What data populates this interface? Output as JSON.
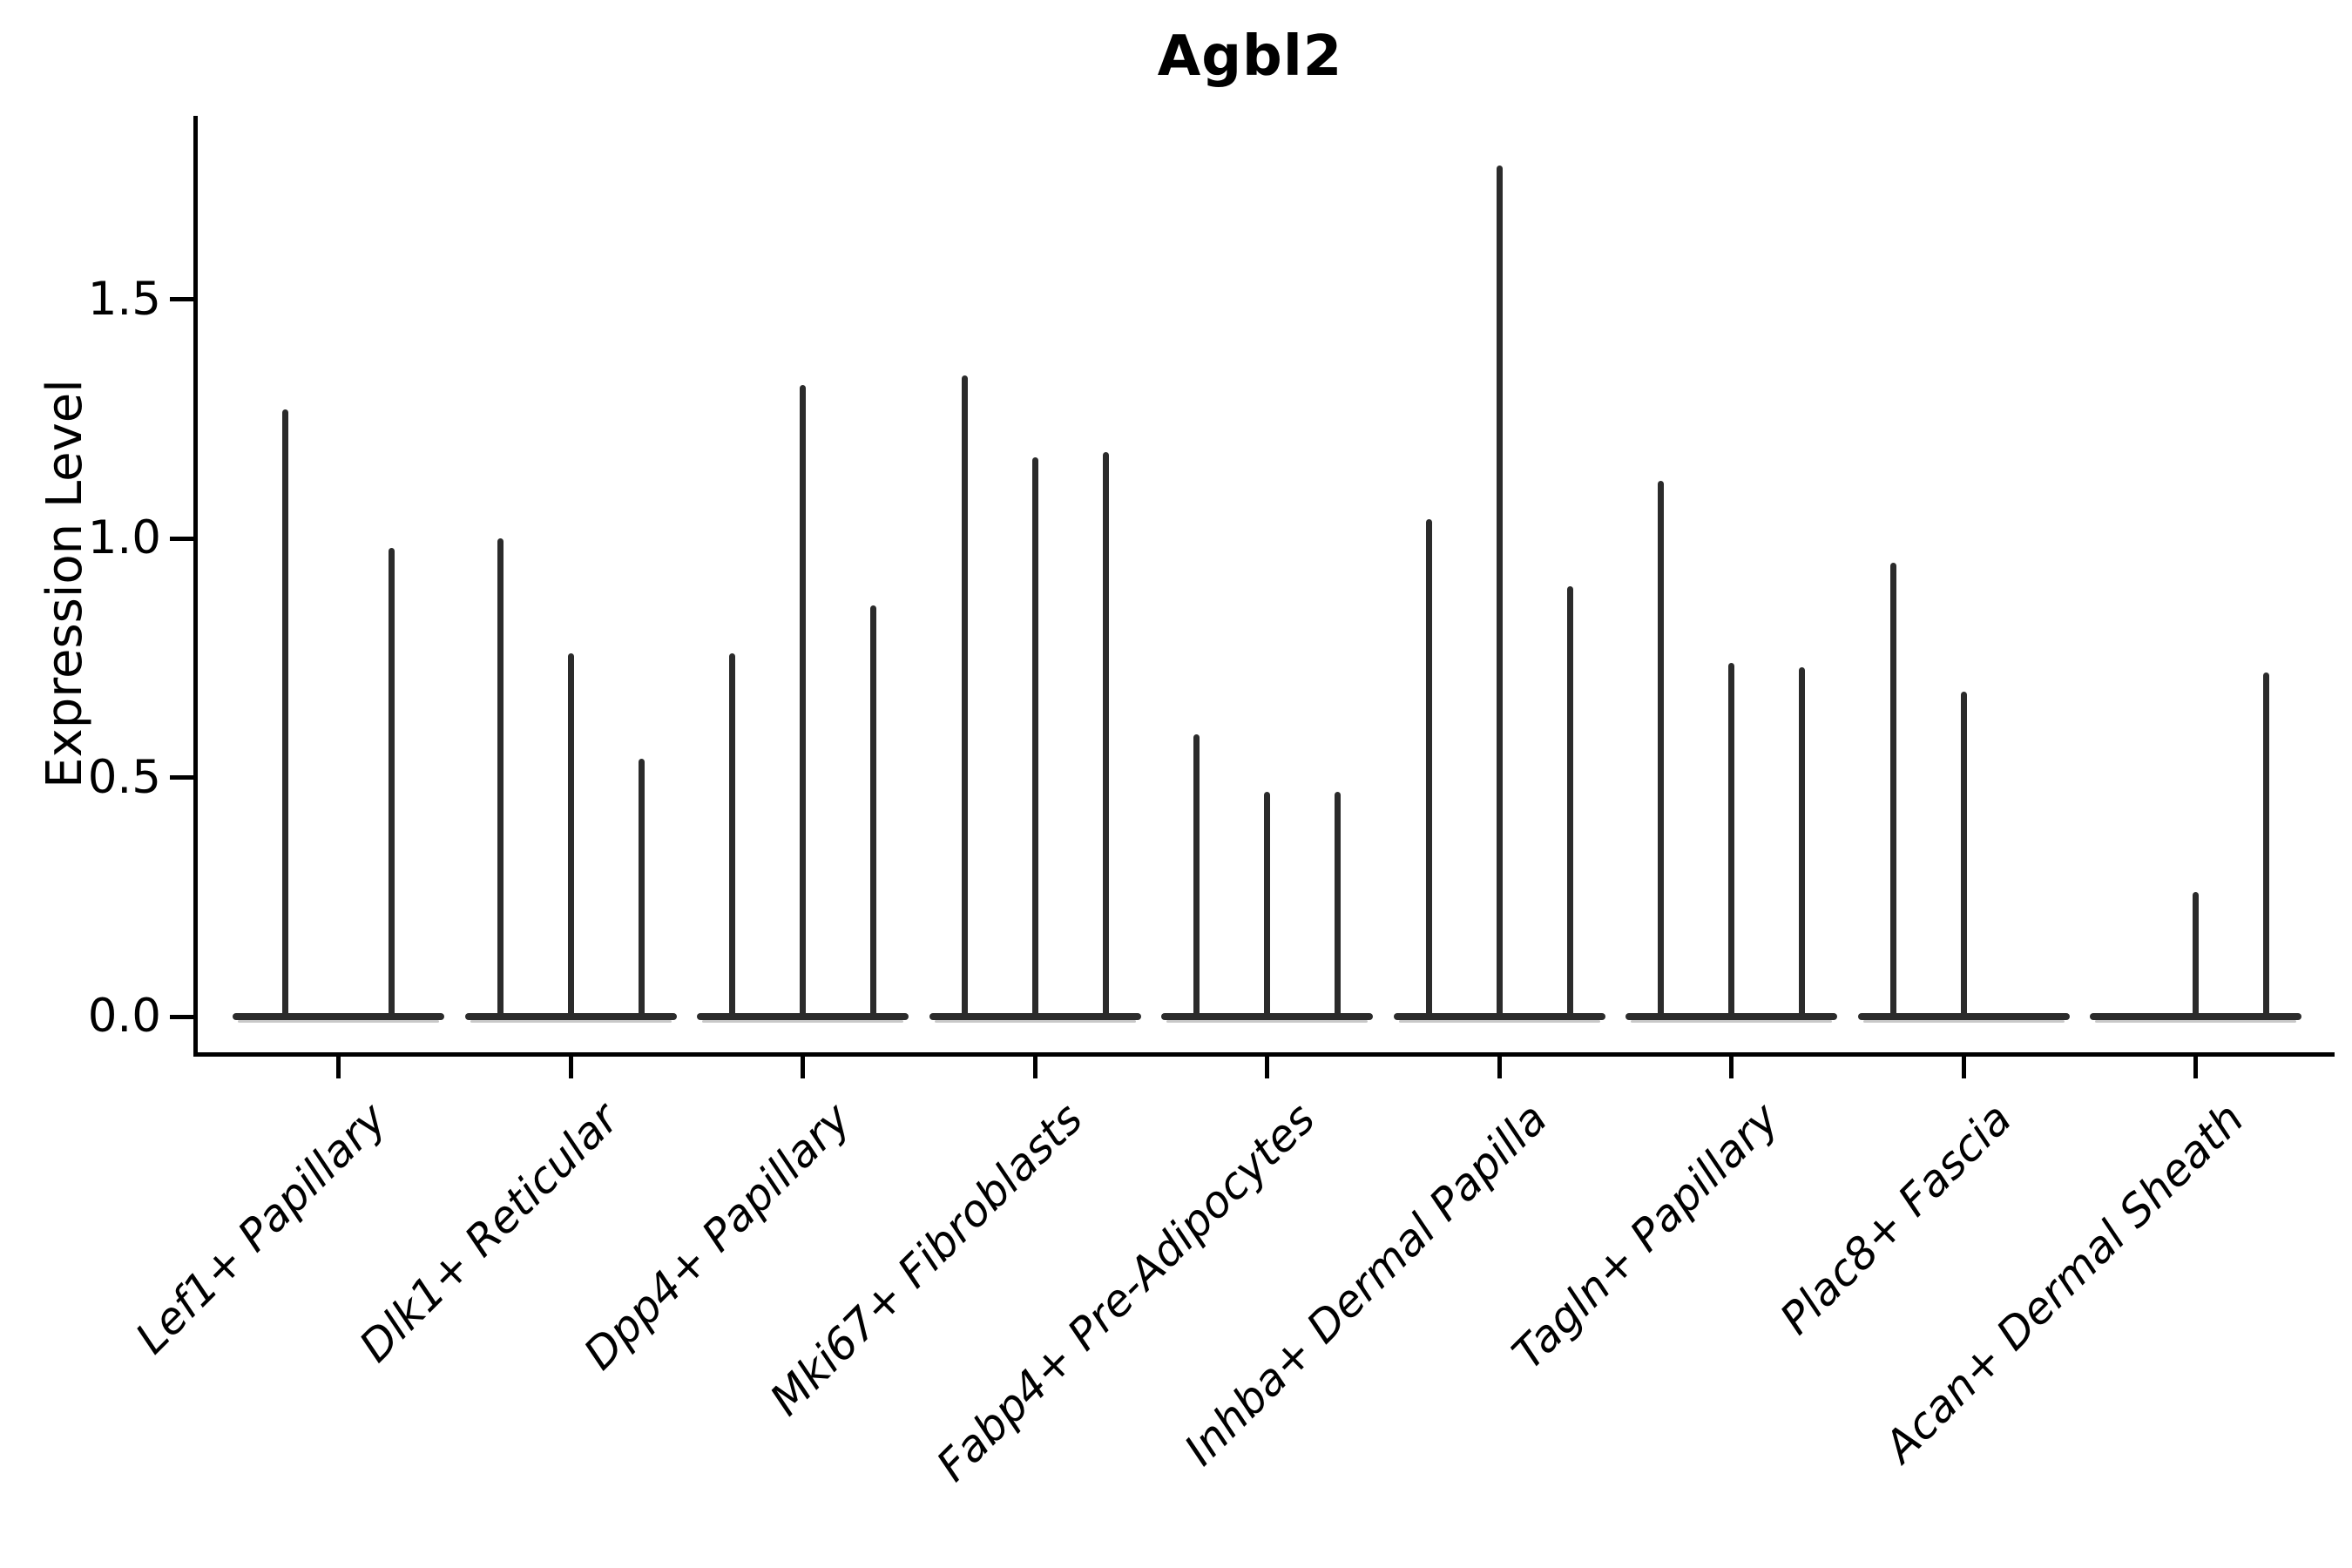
{
  "chart_data": {
    "type": "violin",
    "title": "Agbl2",
    "xlabel": "",
    "ylabel": "Expression Level",
    "yticks": [
      0.0,
      0.5,
      1.0,
      1.5
    ],
    "ytick_labels": [
      "0.0",
      "0.5",
      "1.0",
      "1.5"
    ],
    "ylim": [
      -0.08,
      1.88
    ],
    "grid": false,
    "legend": false,
    "x_rotation_degrees": 45,
    "categories": [
      "Lef1+ Papillary",
      "Dlk1+ Reticular",
      "Dpp4+ Papillary",
      "Mki67+ Fibroblasts",
      "Fabp4+ Pre-Adipocytes",
      "Inhba+ Dermal Papilla",
      "Tagln+ Papillary",
      "Plac8+ Fascia",
      "Acan+ Dermal Sheath"
    ],
    "groups": [
      {
        "category": "Lef1+ Papillary",
        "violin_peaks": [
          1.27,
          0.98
        ]
      },
      {
        "category": "Dlk1+ Reticular",
        "violin_peaks": [
          1.0,
          0.76,
          0.54
        ]
      },
      {
        "category": "Dpp4+ Papillary",
        "violin_peaks": [
          0.76,
          1.32,
          0.86
        ]
      },
      {
        "category": "Mki67+ Fibroblasts",
        "violin_peaks": [
          1.34,
          1.17,
          1.18
        ]
      },
      {
        "category": "Fabp4+ Pre-Adipocytes",
        "violin_peaks": [
          0.59,
          0.47,
          0.47
        ]
      },
      {
        "category": "Inhba+ Dermal Papilla",
        "violin_peaks": [
          1.04,
          1.78,
          0.9
        ]
      },
      {
        "category": "Tagln+ Papillary",
        "violin_peaks": [
          1.12,
          0.74,
          0.73
        ]
      },
      {
        "category": "Plac8+ Fascia",
        "violin_peaks": [
          0.95,
          0.68,
          0.0
        ]
      },
      {
        "category": "Acan+ Dermal Sheath",
        "violin_peaks": [
          0.0,
          0.26,
          0.72
        ]
      }
    ],
    "colors": {
      "ink": "#000000",
      "violin": "#2b2b2b",
      "violin_soft": "#9a9a9a",
      "background": "#ffffff"
    }
  }
}
